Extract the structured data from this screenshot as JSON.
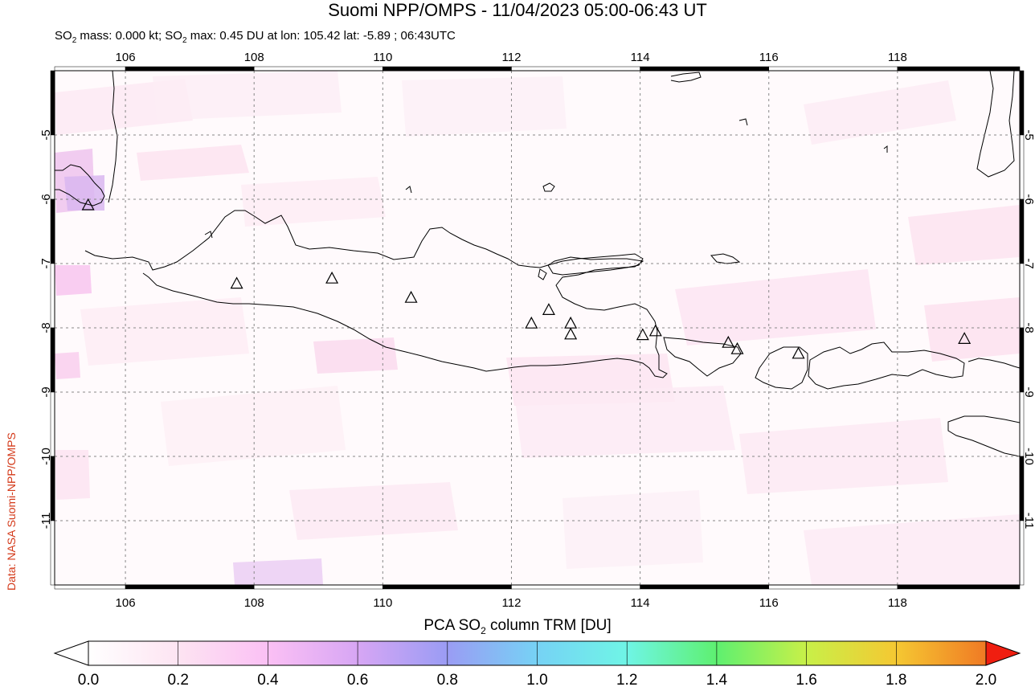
{
  "header": {
    "title": "Suomi NPP/OMPS - 11/04/2023 05:00-06:43 UT",
    "subtitle_prefix": "SO",
    "subtitle_rest_1": " mass: 0.000 kt; SO",
    "subtitle_rest_2": " max: 0.45 DU at lon: 105.42 lat: -5.89 ; 06:43UTC",
    "sub2": "2"
  },
  "credit": "Data: NASA Suomi-NPP/OMPS",
  "map": {
    "lon_ticks": [
      "106",
      "108",
      "110",
      "112",
      "114",
      "116",
      "118"
    ],
    "lat_ticks": [
      "-5",
      "-6",
      "-7",
      "-8",
      "-9",
      "-10",
      "-11"
    ],
    "lon_range": [
      104.9,
      119.9
    ],
    "lat_range": [
      -12.0,
      -4.0
    ],
    "volcano_icon": "triangle-icon",
    "volcanoes": [
      {
        "lon": 105.42,
        "lat": -6.1
      },
      {
        "lon": 107.73,
        "lat": -7.32
      },
      {
        "lon": 109.21,
        "lat": -7.24
      },
      {
        "lon": 110.44,
        "lat": -7.54
      },
      {
        "lon": 112.31,
        "lat": -7.94
      },
      {
        "lon": 112.58,
        "lat": -7.73
      },
      {
        "lon": 112.92,
        "lat": -7.94
      },
      {
        "lon": 112.92,
        "lat": -8.11
      },
      {
        "lon": 114.04,
        "lat": -8.12
      },
      {
        "lon": 114.24,
        "lat": -8.06
      },
      {
        "lon": 115.37,
        "lat": -8.24
      },
      {
        "lon": 115.51,
        "lat": -8.34
      },
      {
        "lon": 116.46,
        "lat": -8.41
      },
      {
        "lon": 119.04,
        "lat": -8.18
      }
    ]
  },
  "colorbar": {
    "title_prefix": "PCA SO",
    "title_sub": "2",
    "title_suffix": " column TRM [DU]",
    "ticks": [
      "0.0",
      "0.2",
      "0.4",
      "0.6",
      "0.8",
      "1.0",
      "1.2",
      "1.4",
      "1.6",
      "1.8",
      "2.0"
    ],
    "colors": [
      "#ffffff",
      "#fde4f2",
      "#fbc0f4",
      "#d7a6f4",
      "#9a9cf4",
      "#76d2f5",
      "#6ff5e6",
      "#5ef070",
      "#c8f048",
      "#f5c832",
      "#f07a24",
      "#f01e10"
    ]
  }
}
